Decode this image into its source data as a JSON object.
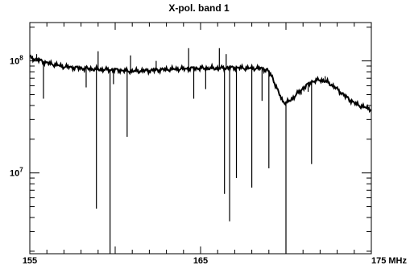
{
  "chart_data": {
    "type": "line",
    "title": "X-pol. band 1",
    "xlabel": "",
    "ylabel": "",
    "x_unit": "MHz",
    "x_range": [
      155,
      175
    ],
    "y_range": [
      1900000,
      220000000
    ],
    "y_scale": "log",
    "x_ticks": [
      {
        "value": 155,
        "label": "155"
      },
      {
        "value": 165,
        "label": "165"
      },
      {
        "value": 175,
        "label": "175 MHz"
      }
    ],
    "y_ticks": [
      {
        "value": 10000000,
        "base": "10",
        "exp": "7"
      },
      {
        "value": 100000000,
        "base": "10",
        "exp": "8"
      }
    ],
    "grid": false,
    "line_color": "#000000",
    "series": [
      {
        "values": [
          [
            155.0,
            107000000
          ],
          [
            155.5,
            102000000
          ],
          [
            156.0,
            96000000
          ],
          [
            157.0,
            89000000
          ],
          [
            158.0,
            86000000
          ],
          [
            159.0,
            84000000
          ],
          [
            160.0,
            83000000
          ],
          [
            161.0,
            81000000
          ],
          [
            162.0,
            82000000
          ],
          [
            163.0,
            84000000
          ],
          [
            164.0,
            85000000
          ],
          [
            165.0,
            86000000
          ],
          [
            166.0,
            86000000
          ],
          [
            167.0,
            87000000
          ],
          [
            168.0,
            86000000
          ],
          [
            168.5,
            86000000
          ],
          [
            168.9,
            83000000
          ],
          [
            169.2,
            72000000
          ],
          [
            169.5,
            55000000
          ],
          [
            169.8,
            44000000
          ],
          [
            170.0,
            42000000
          ],
          [
            170.3,
            45000000
          ],
          [
            170.6,
            50000000
          ],
          [
            171.0,
            57000000
          ],
          [
            171.5,
            65000000
          ],
          [
            172.0,
            68000000
          ],
          [
            172.5,
            64000000
          ],
          [
            173.0,
            56000000
          ],
          [
            173.5,
            48000000
          ],
          [
            174.0,
            42000000
          ],
          [
            174.5,
            39000000
          ],
          [
            175.0,
            37000000
          ]
        ]
      }
    ],
    "spikes": [
      {
        "x": 155.4,
        "y": 115000000
      },
      {
        "x": 155.8,
        "y": 46000000
      },
      {
        "x": 158.3,
        "y": 58000000
      },
      {
        "x": 158.9,
        "y": 4800000
      },
      {
        "x": 159.0,
        "y": 122000000
      },
      {
        "x": 159.7,
        "y": 1900000
      },
      {
        "x": 159.9,
        "y": 62000000
      },
      {
        "x": 160.7,
        "y": 21000000
      },
      {
        "x": 160.9,
        "y": 112000000
      },
      {
        "x": 162.4,
        "y": 100000000
      },
      {
        "x": 164.3,
        "y": 130000000
      },
      {
        "x": 164.6,
        "y": 46000000
      },
      {
        "x": 165.3,
        "y": 56000000
      },
      {
        "x": 166.1,
        "y": 130000000
      },
      {
        "x": 166.4,
        "y": 6500000
      },
      {
        "x": 166.5,
        "y": 115000000
      },
      {
        "x": 166.7,
        "y": 3700000
      },
      {
        "x": 167.1,
        "y": 9000000
      },
      {
        "x": 168.0,
        "y": 7400000
      },
      {
        "x": 168.6,
        "y": 44000000
      },
      {
        "x": 169.0,
        "y": 11000000
      },
      {
        "x": 170.0,
        "y": 1900000
      },
      {
        "x": 170.9,
        "y": 50000000
      },
      {
        "x": 171.3,
        "y": 53000000
      },
      {
        "x": 171.5,
        "y": 12000000
      },
      {
        "x": 172.3,
        "y": 73000000
      },
      {
        "x": 173.5,
        "y": 48000000
      }
    ]
  }
}
